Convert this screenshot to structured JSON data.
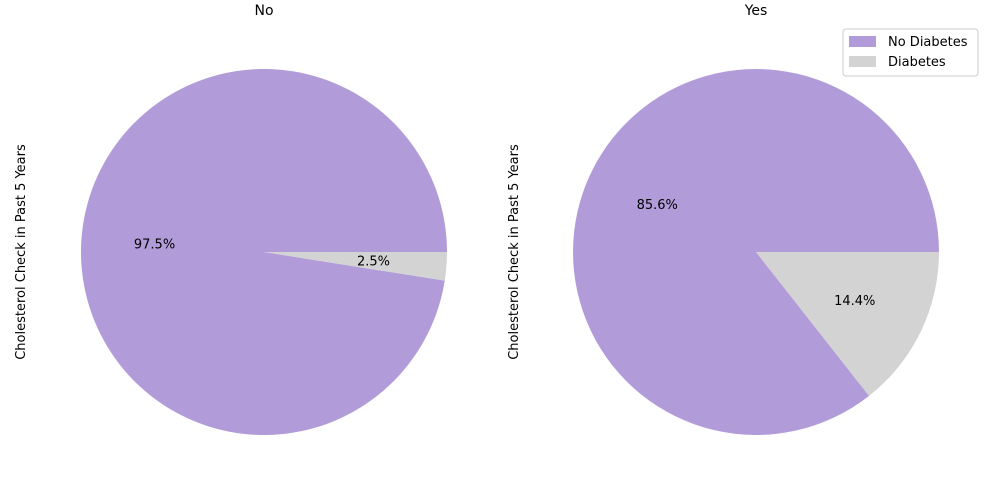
{
  "chart_data": [
    {
      "type": "pie",
      "title": "No",
      "ylabel": "Cholesterol Check in Past 5 Years",
      "slices": [
        {
          "label": "No Diabetes",
          "value": 97.5,
          "pct_label": "97.5%",
          "color": "#b19cd9"
        },
        {
          "label": "Diabetes",
          "value": 2.5,
          "pct_label": "2.5%",
          "color": "#d3d3d3"
        }
      ]
    },
    {
      "type": "pie",
      "title": "Yes",
      "ylabel": "Cholesterol Check in Past 5 Years",
      "slices": [
        {
          "label": "No Diabetes",
          "value": 85.6,
          "pct_label": "85.6%",
          "color": "#b19cd9"
        },
        {
          "label": "Diabetes",
          "value": 14.4,
          "pct_label": "14.4%",
          "color": "#d3d3d3"
        }
      ],
      "legend": {
        "placement": "top-right",
        "entries": [
          {
            "label": "No Diabetes",
            "color": "#b19cd9"
          },
          {
            "label": "Diabetes",
            "color": "#d3d3d3"
          }
        ]
      }
    }
  ]
}
